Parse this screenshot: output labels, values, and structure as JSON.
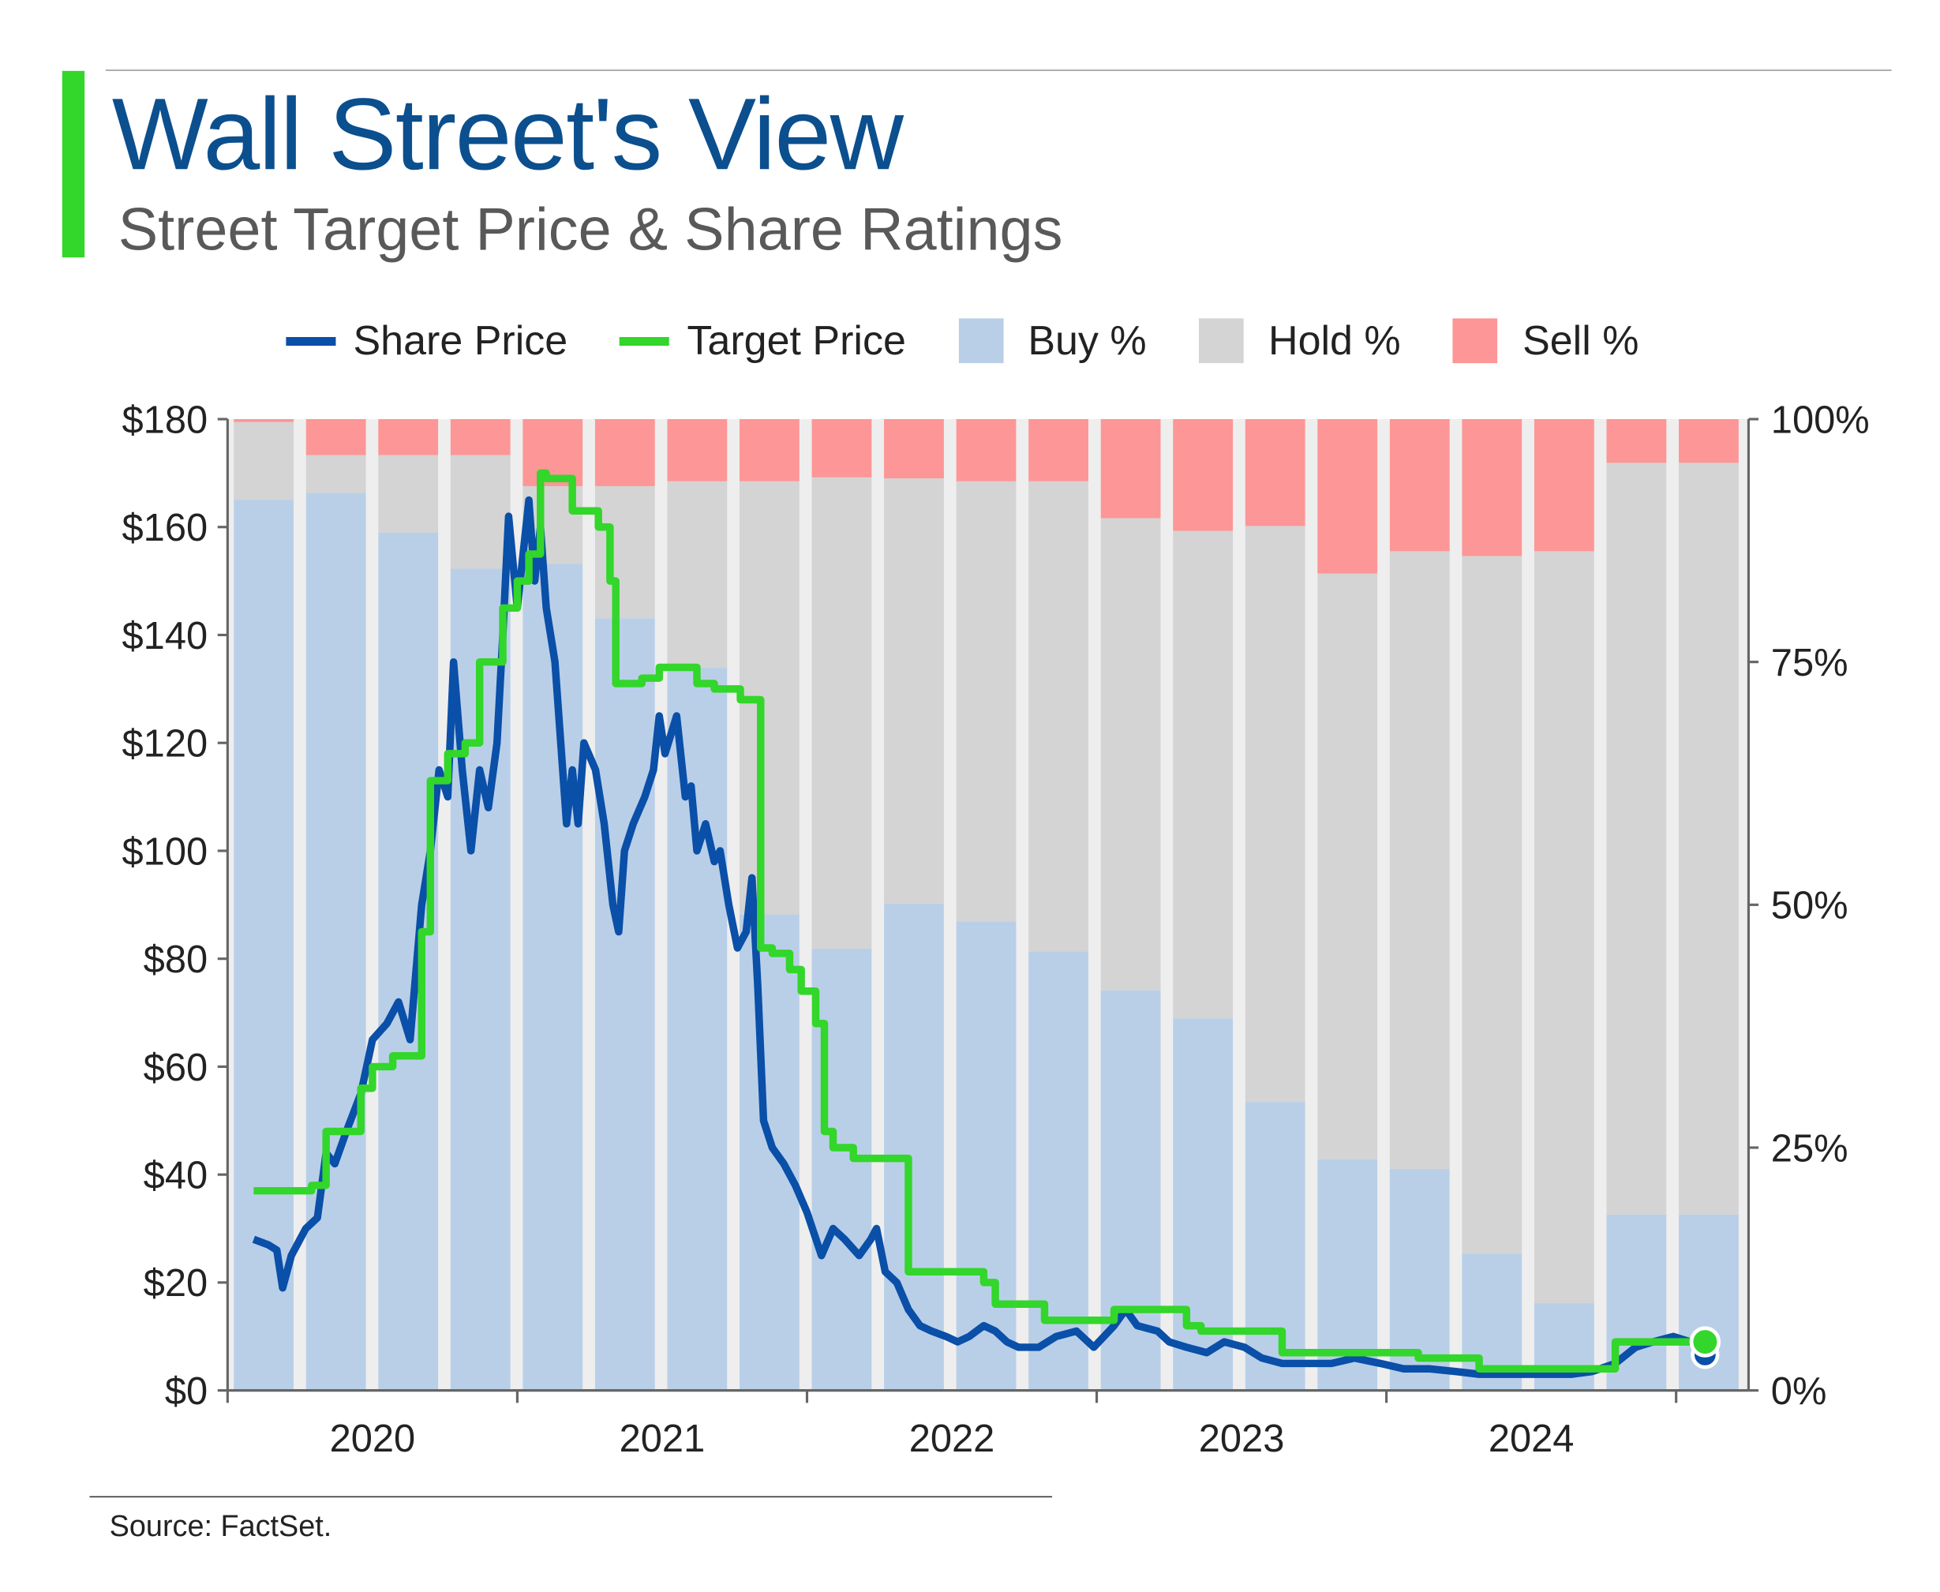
{
  "header": {
    "title": "Wall Street's View",
    "subtitle": "Street Target Price & Share Ratings"
  },
  "source": "Source: FactSet.",
  "colors": {
    "accent": "#33d62a",
    "title": "#0b4f8e",
    "share": "#0a4fa8",
    "target": "#33d62a",
    "buy": "#b9cfe8",
    "hold": "#d4d4d4",
    "sell": "#fd9696"
  },
  "chart_data": {
    "type": "bar+line",
    "title": "Street Target Price & Share Ratings",
    "legend": [
      {
        "name": "Share Price",
        "kind": "line",
        "color": "#0a4fa8"
      },
      {
        "name": "Target Price",
        "kind": "line",
        "color": "#33d62a"
      },
      {
        "name": "Buy %",
        "kind": "box",
        "color": "#b9cfe8"
      },
      {
        "name": "Hold %",
        "kind": "box",
        "color": "#d4d4d4"
      },
      {
        "name": "Sell %",
        "kind": "box",
        "color": "#fd9696"
      }
    ],
    "legend_placement": "top",
    "x_range": [
      2020.0,
      2025.25
    ],
    "x_ticks": [
      2020,
      2021,
      2022,
      2023,
      2024,
      2025
    ],
    "x_labels": [
      "2020",
      "2021",
      "2022",
      "2023",
      "2024"
    ],
    "y_left": {
      "range": [
        0,
        180
      ],
      "ticks": [
        0,
        20,
        40,
        60,
        80,
        100,
        120,
        140,
        160,
        180
      ],
      "labels": [
        "$0",
        "$20",
        "$40",
        "$60",
        "$80",
        "$100",
        "$120",
        "$140",
        "$160",
        "$180"
      ]
    },
    "y_right": {
      "range": [
        0,
        100
      ],
      "ticks": [
        0,
        25,
        50,
        75,
        100
      ],
      "labels": [
        "0%",
        "25%",
        "50%",
        "75%",
        "100%"
      ]
    },
    "ratings_quarters": [
      "Q1 2020",
      "Q2 2020",
      "Q3 2020",
      "Q4 2020",
      "Q1 2021",
      "Q2 2021",
      "Q3 2021",
      "Q4 2021",
      "Q1 2022",
      "Q2 2022",
      "Q3 2022",
      "Q4 2022",
      "Q1 2023",
      "Q2 2023",
      "Q3 2023",
      "Q4 2023",
      "Q1 2024",
      "Q2 2024",
      "Q3 2024",
      "Q4 2024",
      "Q1 2025"
    ],
    "buy_pct": [
      91.7,
      92.4,
      88.3,
      84.6,
      85.1,
      79.5,
      74.4,
      49.0,
      45.5,
      50.1,
      48.3,
      45.2,
      41.2,
      38.3,
      29.7,
      23.8,
      22.8,
      14.1,
      9.0,
      18.1,
      18.1
    ],
    "hold_pct": [
      8.0,
      3.9,
      8.0,
      11.7,
      8.0,
      13.6,
      19.2,
      44.6,
      48.5,
      43.8,
      45.3,
      48.4,
      48.6,
      50.2,
      59.3,
      60.3,
      63.6,
      71.8,
      77.4,
      77.4,
      77.4
    ],
    "sell_pct": [
      0.3,
      3.7,
      3.7,
      3.7,
      6.9,
      6.9,
      6.4,
      6.4,
      6.0,
      6.1,
      6.4,
      6.4,
      10.2,
      11.5,
      11.0,
      15.9,
      13.6,
      14.1,
      13.6,
      4.5,
      4.5
    ],
    "share_price": [
      [
        2020.09,
        28
      ],
      [
        2020.14,
        27
      ],
      [
        2020.17,
        26
      ],
      [
        2020.19,
        19
      ],
      [
        2020.22,
        25
      ],
      [
        2020.27,
        30
      ],
      [
        2020.31,
        32
      ],
      [
        2020.34,
        44
      ],
      [
        2020.37,
        42
      ],
      [
        2020.41,
        48
      ],
      [
        2020.46,
        55
      ],
      [
        2020.5,
        65
      ],
      [
        2020.55,
        68
      ],
      [
        2020.59,
        72
      ],
      [
        2020.63,
        65
      ],
      [
        2020.67,
        90
      ],
      [
        2020.7,
        100
      ],
      [
        2020.73,
        115
      ],
      [
        2020.76,
        110
      ],
      [
        2020.78,
        135
      ],
      [
        2020.81,
        115
      ],
      [
        2020.84,
        100
      ],
      [
        2020.87,
        115
      ],
      [
        2020.9,
        108
      ],
      [
        2020.93,
        120
      ],
      [
        2020.95,
        140
      ],
      [
        2020.97,
        162
      ],
      [
        2021.0,
        145
      ],
      [
        2021.02,
        155
      ],
      [
        2021.04,
        165
      ],
      [
        2021.06,
        150
      ],
      [
        2021.08,
        160
      ],
      [
        2021.1,
        145
      ],
      [
        2021.13,
        135
      ],
      [
        2021.17,
        105
      ],
      [
        2021.19,
        115
      ],
      [
        2021.21,
        105
      ],
      [
        2021.23,
        120
      ],
      [
        2021.27,
        115
      ],
      [
        2021.3,
        105
      ],
      [
        2021.33,
        90
      ],
      [
        2021.35,
        85
      ],
      [
        2021.37,
        100
      ],
      [
        2021.4,
        105
      ],
      [
        2021.44,
        110
      ],
      [
        2021.47,
        115
      ],
      [
        2021.49,
        125
      ],
      [
        2021.51,
        118
      ],
      [
        2021.55,
        125
      ],
      [
        2021.58,
        110
      ],
      [
        2021.6,
        112
      ],
      [
        2021.62,
        100
      ],
      [
        2021.65,
        105
      ],
      [
        2021.68,
        98
      ],
      [
        2021.7,
        100
      ],
      [
        2021.73,
        90
      ],
      [
        2021.76,
        82
      ],
      [
        2021.79,
        85
      ],
      [
        2021.81,
        95
      ],
      [
        2021.83,
        75
      ],
      [
        2021.85,
        50
      ],
      [
        2021.88,
        45
      ],
      [
        2021.92,
        42
      ],
      [
        2021.96,
        38
      ],
      [
        2022.0,
        33
      ],
      [
        2022.05,
        25
      ],
      [
        2022.09,
        30
      ],
      [
        2022.13,
        28
      ],
      [
        2022.18,
        25
      ],
      [
        2022.22,
        28
      ],
      [
        2022.24,
        30
      ],
      [
        2022.27,
        22
      ],
      [
        2022.31,
        20
      ],
      [
        2022.35,
        15
      ],
      [
        2022.39,
        12
      ],
      [
        2022.43,
        11
      ],
      [
        2022.48,
        10
      ],
      [
        2022.52,
        9
      ],
      [
        2022.56,
        10
      ],
      [
        2022.61,
        12
      ],
      [
        2022.65,
        11
      ],
      [
        2022.69,
        9
      ],
      [
        2022.73,
        8
      ],
      [
        2022.8,
        8
      ],
      [
        2022.86,
        10
      ],
      [
        2022.93,
        11
      ],
      [
        2022.99,
        8
      ],
      [
        2023.06,
        12
      ],
      [
        2023.1,
        15
      ],
      [
        2023.14,
        12
      ],
      [
        2023.21,
        11
      ],
      [
        2023.25,
        9
      ],
      [
        2023.31,
        8
      ],
      [
        2023.38,
        7
      ],
      [
        2023.44,
        9
      ],
      [
        2023.51,
        8
      ],
      [
        2023.57,
        6
      ],
      [
        2023.64,
        5
      ],
      [
        2023.72,
        5
      ],
      [
        2023.81,
        5
      ],
      [
        2023.89,
        6
      ],
      [
        2023.98,
        5
      ],
      [
        2024.06,
        4
      ],
      [
        2024.15,
        4
      ],
      [
        2024.24,
        3.5
      ],
      [
        2024.32,
        3
      ],
      [
        2024.41,
        3
      ],
      [
        2024.49,
        3
      ],
      [
        2024.58,
        3
      ],
      [
        2024.64,
        3
      ],
      [
        2024.71,
        3.5
      ],
      [
        2024.79,
        5
      ],
      [
        2024.86,
        8
      ],
      [
        2024.92,
        9
      ],
      [
        2024.99,
        10
      ],
      [
        2025.05,
        9
      ],
      [
        2025.1,
        8
      ]
    ],
    "target_price": [
      [
        2020.09,
        37
      ],
      [
        2020.29,
        38
      ],
      [
        2020.34,
        48
      ],
      [
        2020.46,
        56
      ],
      [
        2020.5,
        60
      ],
      [
        2020.57,
        62
      ],
      [
        2020.67,
        85
      ],
      [
        2020.7,
        113
      ],
      [
        2020.76,
        118
      ],
      [
        2020.82,
        120
      ],
      [
        2020.87,
        135
      ],
      [
        2020.95,
        145
      ],
      [
        2021.0,
        150
      ],
      [
        2021.04,
        155
      ],
      [
        2021.08,
        170
      ],
      [
        2021.1,
        169
      ],
      [
        2021.19,
        163
      ],
      [
        2021.28,
        160
      ],
      [
        2021.32,
        150
      ],
      [
        2021.34,
        131
      ],
      [
        2021.43,
        132
      ],
      [
        2021.49,
        134
      ],
      [
        2021.62,
        131
      ],
      [
        2021.68,
        130
      ],
      [
        2021.77,
        128
      ],
      [
        2021.84,
        82
      ],
      [
        2021.88,
        81
      ],
      [
        2021.94,
        78
      ],
      [
        2021.98,
        74
      ],
      [
        2022.03,
        68
      ],
      [
        2022.06,
        48
      ],
      [
        2022.09,
        45
      ],
      [
        2022.16,
        43
      ],
      [
        2022.35,
        22
      ],
      [
        2022.61,
        20
      ],
      [
        2022.65,
        16
      ],
      [
        2022.82,
        13
      ],
      [
        2023.06,
        15
      ],
      [
        2023.31,
        12
      ],
      [
        2023.36,
        11
      ],
      [
        2023.64,
        7
      ],
      [
        2024.11,
        6
      ],
      [
        2024.32,
        4
      ],
      [
        2024.79,
        9
      ],
      [
        2025.1,
        9
      ]
    ]
  }
}
